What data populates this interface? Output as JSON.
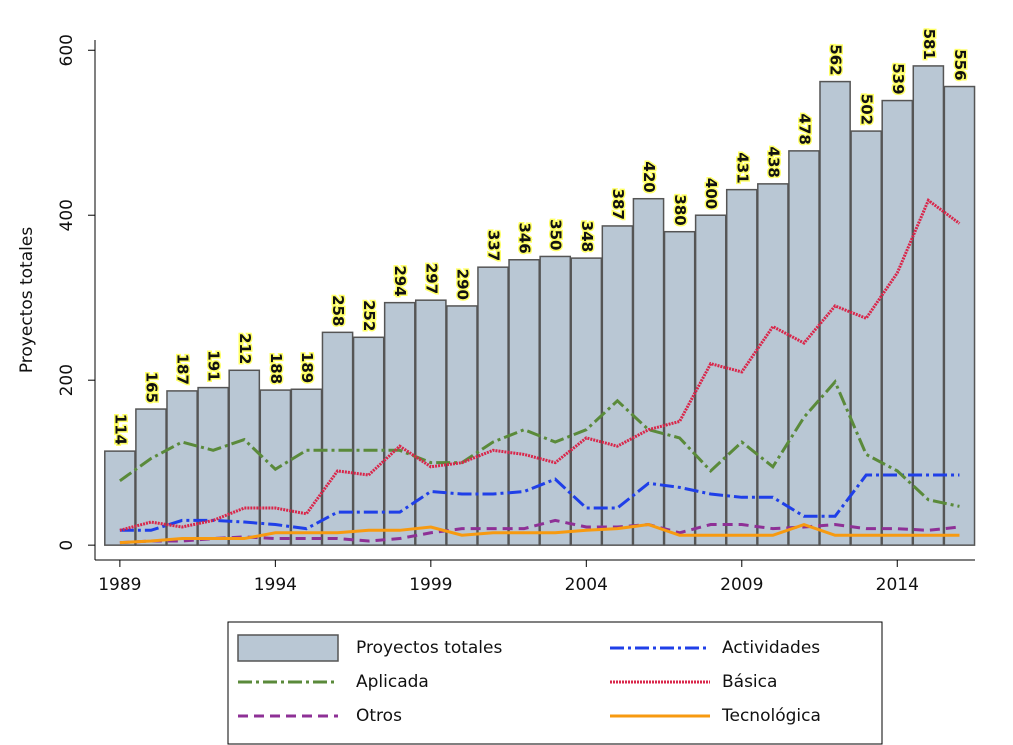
{
  "chart_data": {
    "type": "bar",
    "ylabel": "Proyectos totales",
    "x": [
      1989,
      1990,
      1991,
      1992,
      1993,
      1994,
      1995,
      1996,
      1997,
      1998,
      1999,
      2000,
      2001,
      2002,
      2003,
      2004,
      2005,
      2006,
      2007,
      2008,
      2009,
      2010,
      2011,
      2012,
      2013,
      2014,
      2015,
      2016
    ],
    "xlim": [
      1988.2,
      2016.5
    ],
    "xticks": [
      1989,
      1994,
      1999,
      2004,
      2009,
      2014
    ],
    "ylim": [
      -18,
      610
    ],
    "yticks": [
      0,
      200,
      400,
      600
    ],
    "series": [
      {
        "name": "Proyectos totales",
        "type": "bar",
        "color": "#b9c7d4",
        "values": [
          114,
          165,
          187,
          191,
          212,
          188,
          189,
          258,
          252,
          294,
          297,
          290,
          337,
          346,
          350,
          348,
          387,
          420,
          380,
          400,
          431,
          438,
          478,
          562,
          502,
          539,
          581,
          556
        ]
      },
      {
        "name": "Actividades",
        "type": "line",
        "dash": "14 4 3 4",
        "color": "#1f3fe8",
        "values": [
          18,
          18,
          30,
          30,
          28,
          25,
          20,
          40,
          40,
          40,
          65,
          62,
          62,
          65,
          80,
          45,
          45,
          75,
          70,
          62,
          58,
          58,
          35,
          35,
          85,
          85,
          85,
          85
        ]
      },
      {
        "name": "Aplicada",
        "type": "line",
        "dash": "14 4 3 4",
        "color": "#5a8a3a",
        "values": [
          78,
          105,
          125,
          115,
          128,
          92,
          115,
          115,
          115,
          115,
          100,
          100,
          125,
          140,
          125,
          140,
          175,
          140,
          130,
          90,
          125,
          95,
          155,
          198,
          110,
          90,
          55,
          47
        ]
      },
      {
        "name": "Básica",
        "type": "line",
        "dash": "2 1",
        "color": "#d9264a",
        "values": [
          18,
          28,
          22,
          30,
          45,
          45,
          38,
          90,
          85,
          120,
          95,
          100,
          115,
          110,
          100,
          130,
          120,
          140,
          150,
          220,
          210,
          265,
          245,
          290,
          275,
          330,
          418,
          390
        ]
      },
      {
        "name": "Otros",
        "type": "line",
        "dash": "10 6",
        "color": "#8e3096",
        "values": [
          3,
          5,
          5,
          8,
          10,
          8,
          8,
          8,
          5,
          8,
          15,
          20,
          20,
          20,
          30,
          22,
          22,
          25,
          15,
          25,
          25,
          20,
          22,
          25,
          20,
          20,
          18,
          22
        ]
      },
      {
        "name": "Tecnológica",
        "type": "line",
        "dash": "none",
        "color": "#f79a10",
        "values": [
          3,
          5,
          8,
          8,
          8,
          15,
          15,
          15,
          18,
          18,
          22,
          12,
          15,
          15,
          15,
          18,
          20,
          25,
          12,
          12,
          12,
          12,
          25,
          12,
          12,
          12,
          12,
          12
        ]
      }
    ]
  }
}
